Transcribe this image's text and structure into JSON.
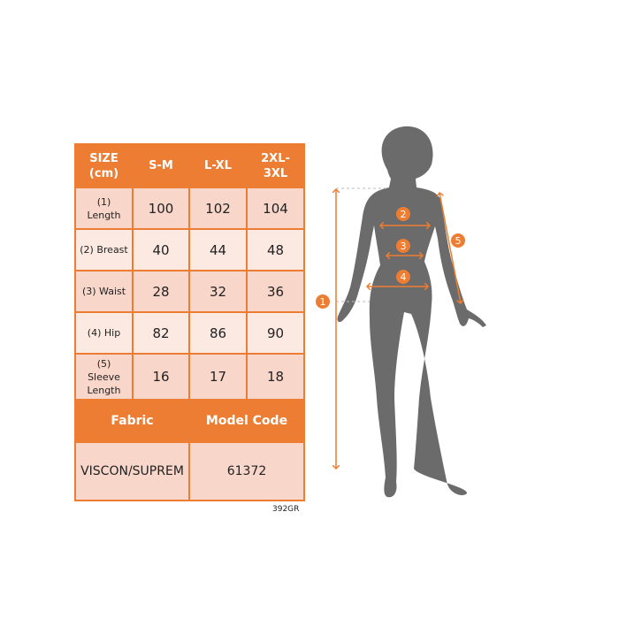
{
  "colors": {
    "accent": "#ec7d32",
    "row_dark": "#f8d6c9",
    "row_light": "#fce9e2",
    "silhouette": "#6b6b6b"
  },
  "table": {
    "headers": [
      "SIZE (cm)",
      "S-M",
      "L-XL",
      "2XL-3XL"
    ],
    "rows": [
      {
        "label": "(1) Length",
        "values": [
          "100",
          "102",
          "104"
        ]
      },
      {
        "label": "(2) Breast",
        "values": [
          "40",
          "44",
          "48"
        ]
      },
      {
        "label": "(3) Waist",
        "values": [
          "28",
          "32",
          "36"
        ]
      },
      {
        "label": "(4) Hip",
        "values": [
          "82",
          "86",
          "90"
        ]
      },
      {
        "label": "(5) Sleeve Length",
        "values": [
          "16",
          "17",
          "18"
        ]
      }
    ],
    "footer_headers": [
      "Fabric",
      "Model Code"
    ],
    "footer_values": [
      "VISCON/SUPREM",
      "61372"
    ]
  },
  "product_code": "392GR",
  "figure": {
    "markers": [
      "1",
      "2",
      "3",
      "4",
      "5"
    ]
  }
}
